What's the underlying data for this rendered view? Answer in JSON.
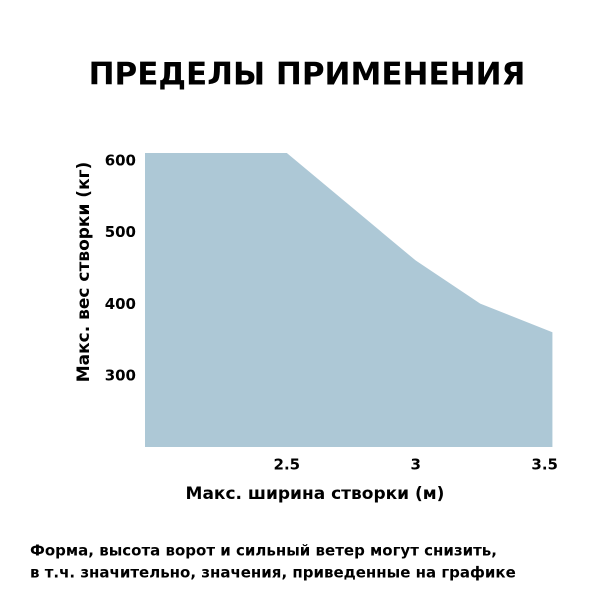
{
  "chart_data": {
    "type": "area",
    "title": "ПРЕДЕЛЫ ПРИМЕНЕНИЯ",
    "x_label": "Макс. ширина створки (м)",
    "y_label": "Макс. вес створки (кг)",
    "x": [
      1.95,
      2.5,
      2.75,
      3,
      3.25,
      3.53
    ],
    "values": [
      600,
      600,
      525,
      450,
      390,
      350
    ],
    "color": "#adc8d6",
    "xlim": [
      1.95,
      3.54
    ],
    "xticks": [
      2.5,
      3,
      3.5
    ],
    "ylim": [
      190,
      600
    ],
    "yticks": [
      300,
      400,
      500,
      600
    ],
    "grid": false,
    "note": [
      "Форма, высота ворот и сильный ветер могут снизить,",
      "в т.ч. значительно, значения, приведенные на графике"
    ]
  }
}
